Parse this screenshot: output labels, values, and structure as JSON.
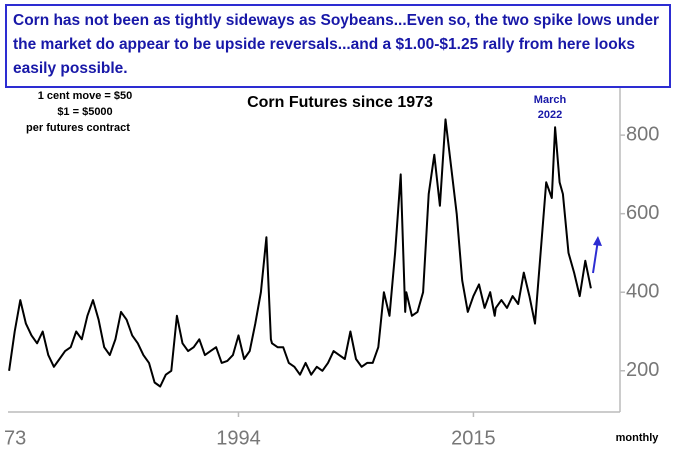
{
  "chart_data": {
    "type": "line",
    "subtitle": "Corn has not been as tightly sideways as Soybeans...Even so, the two spike lows under the market do appear to be upside reversals...and a $1.00-$1.25 rally from here looks easily possible.",
    "title": "Corn Futures since 1973",
    "annotations": [
      "1 cent move = $50",
      "$1 = $5000",
      "per futures contract",
      "March",
      "2022",
      "monthly"
    ],
    "color": "#000000",
    "x": [
      1973.5,
      1974,
      1974.5,
      1975,
      1975.5,
      1976,
      1976.5,
      1977,
      1977.5,
      1978,
      1978.5,
      1979,
      1979.5,
      1980,
      1980.5,
      1981,
      1981.5,
      1982,
      1982.5,
      1983,
      1983.5,
      1984,
      1984.5,
      1985,
      1985.5,
      1986,
      1986.5,
      1987,
      1987.5,
      1988,
      1988.5,
      1989,
      1989.5,
      1990,
      1990.5,
      1991,
      1991.5,
      1992,
      1992.5,
      1993,
      1993.5,
      1994,
      1994.5,
      1995,
      1995.5,
      1996,
      1996.5,
      1996.9,
      1997,
      1997.5,
      1998,
      1998.5,
      1999,
      1999.5,
      2000,
      2000.5,
      2001,
      2001.5,
      2002,
      2002.5,
      2003,
      2003.5,
      2004,
      2004.5,
      2005,
      2005.5,
      2006,
      2006.5,
      2007,
      2007.5,
      2008,
      2008.5,
      2008.9,
      2009,
      2009.5,
      2010,
      2010.5,
      2011,
      2011.5,
      2012,
      2012.5,
      2013,
      2013.5,
      2014,
      2014.5,
      2015,
      2015.5,
      2016,
      2016.5,
      2016.9,
      2017,
      2017.5,
      2018,
      2018.5,
      2019,
      2019.5,
      2020,
      2020.5,
      2021,
      2021.5,
      2022,
      2022.3,
      2022.7,
      2023,
      2023.5,
      2024,
      2024.5,
      2025,
      2025.5
    ],
    "values": [
      200,
      300,
      380,
      320,
      290,
      270,
      300,
      240,
      210,
      230,
      250,
      260,
      300,
      280,
      340,
      380,
      330,
      260,
      240,
      280,
      350,
      330,
      290,
      270,
      240,
      220,
      170,
      160,
      190,
      200,
      340,
      270,
      250,
      260,
      280,
      240,
      250,
      260,
      220,
      225,
      240,
      290,
      230,
      250,
      320,
      400,
      540,
      280,
      270,
      260,
      260,
      220,
      210,
      190,
      220,
      190,
      210,
      200,
      220,
      250,
      240,
      230,
      300,
      230,
      210,
      220,
      220,
      260,
      400,
      340,
      500,
      700,
      350,
      400,
      340,
      350,
      400,
      650,
      750,
      620,
      840,
      720,
      600,
      430,
      350,
      390,
      420,
      360,
      400,
      340,
      360,
      380,
      360,
      390,
      370,
      450,
      390,
      320,
      500,
      680,
      640,
      820,
      680,
      650,
      500,
      450,
      390,
      480,
      410
    ],
    "xlim": [
      1973.4,
      2028.1
    ],
    "ylim": [
      95,
      920
    ],
    "xticks": [
      {
        "value": 1973,
        "label": "73"
      },
      1994,
      2015
    ],
    "yticks": [
      200,
      400,
      600,
      800
    ]
  }
}
